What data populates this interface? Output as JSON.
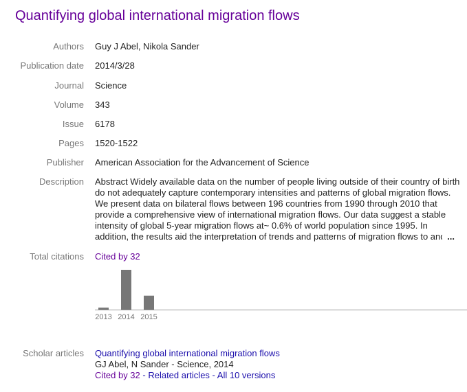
{
  "title": "Quantifying global international migration flows",
  "fields": {
    "authors": {
      "label": "Authors",
      "value": "Guy J Abel, Nikola Sander"
    },
    "publication_date": {
      "label": "Publication date",
      "value": "2014/3/28"
    },
    "journal": {
      "label": "Journal",
      "value": "Science"
    },
    "volume": {
      "label": "Volume",
      "value": "343"
    },
    "issue": {
      "label": "Issue",
      "value": "6178"
    },
    "pages": {
      "label": "Pages",
      "value": "1520-1522"
    },
    "publisher": {
      "label": "Publisher",
      "value": "American Association for the Advancement of Science"
    },
    "description": {
      "label": "Description",
      "lines": [
        "Abstract Widely available data on the number of people living outside of their country of birth",
        "do not adequately capture contemporary intensities and patterns of global migration flows.",
        "We present data on bilateral flows between 196 countries from 1990 through 2010 that",
        "provide a comprehensive view of international migration flows. Our data suggest a stable",
        "intensity of global 5-year migration flows at~ 0.6% of world population since 1995. In",
        "addition, the results aid the interpretation of trends and patterns of migration flows to and"
      ],
      "ellipsis": "..."
    }
  },
  "citations": {
    "label": "Total citations",
    "cited_by": "Cited by 32"
  },
  "chart_data": {
    "type": "bar",
    "categories": [
      "2013",
      "2014",
      "2015"
    ],
    "values": [
      1,
      20,
      7
    ],
    "ylim": [
      0,
      20
    ],
    "bar_color": "#777777",
    "axis_color": "#999999"
  },
  "scholar": {
    "label": "Scholar articles",
    "article_title": "Quantifying global international migration flows",
    "byline": "GJ Abel, N Sander - Science, 2014",
    "cited_by": "Cited by 32",
    "sep1": " - ",
    "related": "Related articles",
    "sep2": " - ",
    "versions": "All 10 versions"
  },
  "colors": {
    "title": "#660099",
    "label": "#777777",
    "link": "#1a0dab"
  }
}
